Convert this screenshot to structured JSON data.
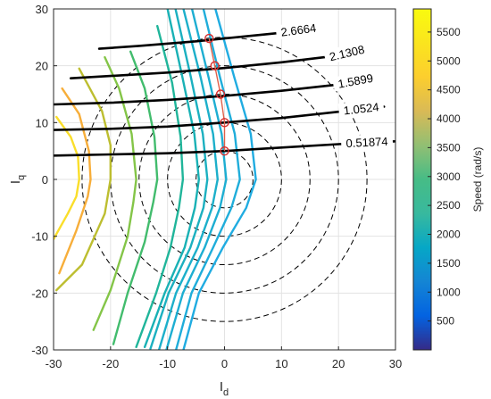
{
  "chart_data": {
    "type": "contour",
    "xlabel_main": "I",
    "xlabel_sub": "d",
    "ylabel_main": "I",
    "ylabel_sub": "q",
    "xlim": [
      -30,
      30
    ],
    "ylim": [
      -30,
      30
    ],
    "x_ticks": [
      "-30",
      "-20",
      "-10",
      "0",
      "10",
      "20",
      "30"
    ],
    "y_ticks": [
      "30",
      "20",
      "10",
      "0",
      "-10",
      "-20",
      "-30"
    ],
    "grid": true,
    "colorbar": {
      "label": "Speed (rad/s)",
      "range": [
        0,
        5900
      ],
      "ticks": [
        "5500",
        "5000",
        "4500",
        "4000",
        "3500",
        "3000",
        "2500",
        "2000",
        "1500",
        "1000",
        "500"
      ],
      "colormap": "parula"
    },
    "current_circles": {
      "center": [
        0,
        0
      ],
      "radii": [
        5,
        10,
        15,
        20,
        25
      ],
      "style": "dashed",
      "color": "#000000"
    },
    "torque_contours": [
      {
        "label": "0.51874",
        "x": [
          -30,
          -20,
          -10,
          0,
          10,
          20,
          30
        ],
        "y": [
          4.2,
          4.4,
          4.6,
          5.0,
          5.6,
          6.2,
          6.7
        ]
      },
      {
        "label": "1.0524",
        "x": [
          -30,
          -20,
          -10,
          0,
          10,
          20,
          28
        ],
        "y": [
          8.7,
          8.9,
          9.3,
          10.0,
          10.8,
          11.9,
          12.8
        ]
      },
      {
        "label": "1.5899",
        "x": [
          -30,
          -20,
          -10,
          0,
          10,
          20,
          26
        ],
        "y": [
          13.2,
          13.5,
          14.0,
          14.7,
          15.6,
          16.7,
          17.8
        ]
      },
      {
        "label": "2.1308",
        "x": [
          -27,
          -20,
          -10,
          0,
          10,
          20,
          23
        ],
        "y": [
          17.8,
          18.2,
          18.8,
          19.6,
          20.6,
          21.8,
          22.5
        ]
      },
      {
        "label": "2.6664",
        "x": [
          -22,
          -15,
          -5,
          0,
          10,
          16
        ],
        "y": [
          23.0,
          23.5,
          24.3,
          24.8,
          25.8,
          26.6
        ]
      }
    ],
    "speed_contours": [
      {
        "color": "#FADE2A",
        "x": [
          -30,
          -27.5,
          -26,
          -25.5,
          -25.7,
          -27,
          -29.5
        ],
        "y": [
          -10.5,
          -6,
          -3,
          0,
          4,
          7.5,
          11
        ]
      },
      {
        "color": "#F7AE3A",
        "x": [
          -29,
          -26,
          -24,
          -23.5,
          -23.8,
          -25.5,
          -28.5
        ],
        "y": [
          -16.5,
          -9,
          -3,
          0,
          5,
          11.5,
          16
        ]
      },
      {
        "color": "#BDBE30",
        "x": [
          -29.5,
          -25,
          -21,
          -20,
          -20,
          -21.5,
          -25.5
        ],
        "y": [
          -19.5,
          -15,
          -6,
          0,
          6,
          12,
          19.5
        ]
      },
      {
        "color": "#84C548",
        "x": [
          -23,
          -20,
          -17,
          -16,
          -15.5,
          -16.3,
          -18.5,
          -21
        ],
        "y": [
          -26.5,
          -19.5,
          -10,
          -4,
          0,
          8,
          16,
          21.5
        ]
      },
      {
        "color": "#42BC6D",
        "x": [
          -19.5,
          -17,
          -14,
          -12.5,
          -11.8,
          -12.3,
          -14,
          -16.5
        ],
        "y": [
          -29,
          -20,
          -11,
          -4,
          0,
          7.5,
          16,
          22.5
        ]
      },
      {
        "color": "#20B59A",
        "x": [
          -15.5,
          -12,
          -9.5,
          -8,
          -7.3,
          -7.7,
          -9.2,
          -11.8
        ],
        "y": [
          -29.5,
          -20,
          -12,
          -5,
          0,
          7.5,
          17,
          27
        ]
      },
      {
        "color": "#19B1B5",
        "x": [
          -14,
          -10.5,
          -7,
          -5.2,
          -4.5,
          -5.3,
          -7.4,
          -10
        ],
        "y": [
          -29.5,
          -20,
          -12,
          -5,
          0,
          8,
          18,
          30
        ]
      },
      {
        "color": "#1BB0C0",
        "x": [
          -13,
          -9.8,
          -6,
          -3.7,
          -3,
          -3.8,
          -5.9,
          -8.6
        ],
        "y": [
          -29.8,
          -20,
          -12,
          -5,
          0,
          8,
          18,
          30
        ]
      },
      {
        "color": "#1CAFCA",
        "x": [
          -11.5,
          -8.5,
          -4.7,
          -2.2,
          -1.2,
          -2,
          -4.2,
          -7.2
        ],
        "y": [
          -30,
          -20,
          -12,
          -5,
          0,
          8,
          18,
          30
        ]
      },
      {
        "color": "#1DAED2",
        "x": [
          -10.2,
          -7.3,
          -3.5,
          -0.8,
          0.3,
          -0.5,
          -2.8,
          -5.7
        ],
        "y": [
          -30,
          -20,
          -12,
          -5,
          0,
          8,
          18,
          30
        ]
      },
      {
        "color": "#1FADDA",
        "x": [
          -8.5,
          -5.8,
          -2,
          1.2,
          2.7,
          1.8,
          -0.8,
          -3.7
        ],
        "y": [
          -30,
          -20,
          -12,
          -5,
          0,
          8,
          18,
          30
        ]
      },
      {
        "color": "#20ACE1",
        "x": [
          -7.2,
          -4.5,
          -0.3,
          3.8,
          5.5,
          4.6,
          1.7,
          -1.6
        ],
        "y": [
          -30,
          -20,
          -12,
          -5,
          0,
          8,
          18,
          30
        ]
      }
    ],
    "mtpa_points": {
      "x": [
        0,
        0,
        -0.7,
        -1.7,
        -2.7
      ],
      "y": [
        5,
        10,
        15,
        20,
        24.8
      ],
      "line_color": "#E0604A",
      "marker_color": "#D62D2D"
    }
  }
}
